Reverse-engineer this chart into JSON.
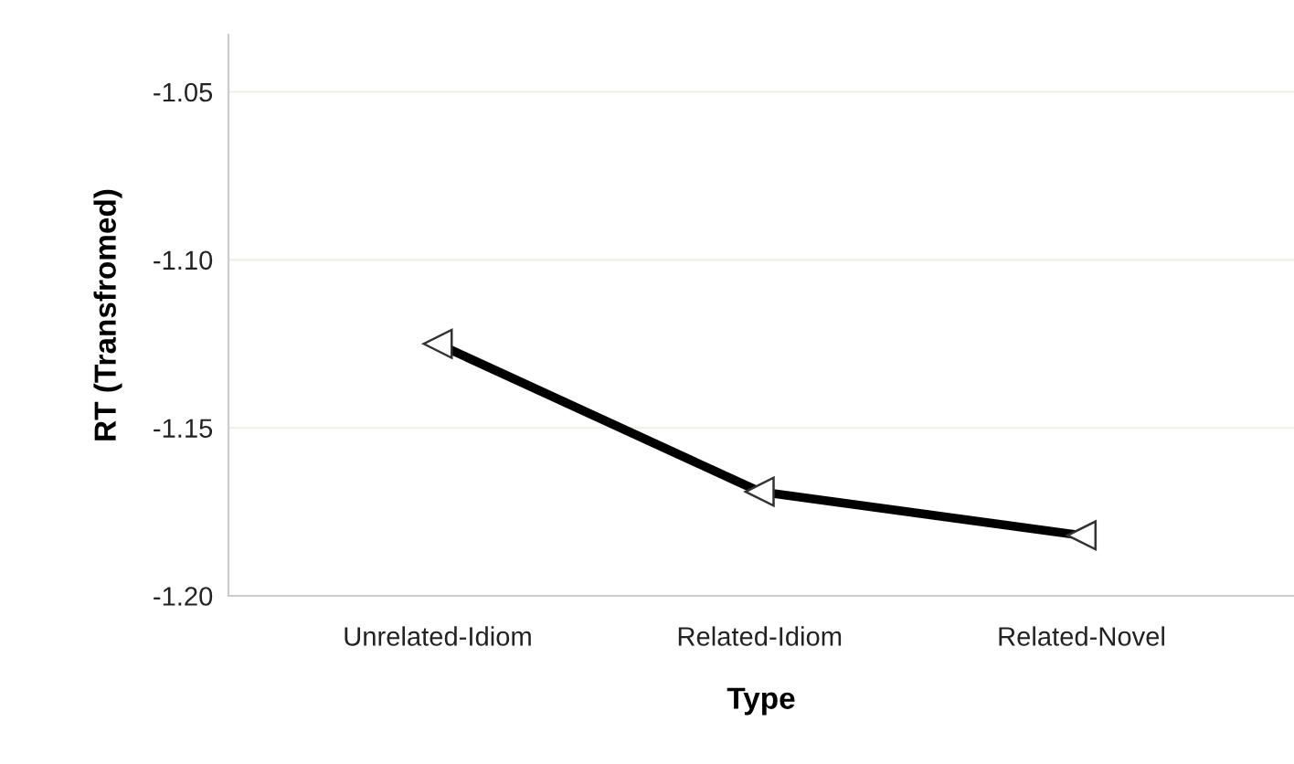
{
  "chart_data": {
    "type": "line",
    "xlabel": "Type",
    "ylabel": "RT (Transfromed)",
    "categories": [
      "Unrelated-Idiom",
      "Related-Idiom",
      "Related-Novel"
    ],
    "series": [
      {
        "color": "#000000",
        "values": [
          -1.125,
          -1.169,
          -1.182
        ]
      }
    ],
    "ylim": [
      -1.2,
      -1.033
    ],
    "yticks": [
      {
        "value": -1.05,
        "label": "-1.05"
      },
      {
        "value": -1.1,
        "label": "-1.10"
      },
      {
        "value": -1.15,
        "label": "-1.15"
      },
      {
        "value": -1.2,
        "label": "-1.20"
      }
    ],
    "grid": "y",
    "marker": "triangle",
    "line_style": "solid"
  }
}
